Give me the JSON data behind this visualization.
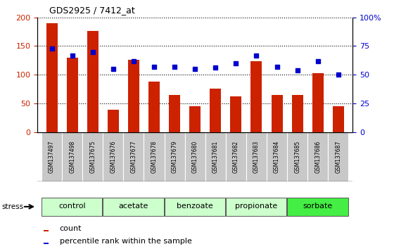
{
  "title": "GDS2925 / 7412_at",
  "categories": [
    "GSM137497",
    "GSM137498",
    "GSM137675",
    "GSM137676",
    "GSM137677",
    "GSM137678",
    "GSM137679",
    "GSM137680",
    "GSM137681",
    "GSM137682",
    "GSM137683",
    "GSM137684",
    "GSM137685",
    "GSM137686",
    "GSM137687"
  ],
  "counts": [
    190,
    130,
    176,
    39,
    126,
    88,
    65,
    45,
    76,
    62,
    124,
    65,
    65,
    103,
    45
  ],
  "percentiles": [
    73,
    67,
    70,
    55,
    62,
    57,
    57,
    55,
    56,
    60,
    67,
    57,
    54,
    62,
    50
  ],
  "bar_color": "#cc2200",
  "dot_color": "#0000cc",
  "ylim_left": [
    0,
    200
  ],
  "ylim_right": [
    0,
    100
  ],
  "yticks_left": [
    0,
    50,
    100,
    150,
    200
  ],
  "yticks_right": [
    0,
    25,
    50,
    75,
    100
  ],
  "yticklabels_right": [
    "0",
    "25",
    "50",
    "75",
    "100%"
  ],
  "groups": [
    {
      "label": "control",
      "start": 0,
      "end": 3,
      "color": "#ccffcc"
    },
    {
      "label": "acetate",
      "start": 3,
      "end": 6,
      "color": "#ccffcc"
    },
    {
      "label": "benzoate",
      "start": 6,
      "end": 9,
      "color": "#ccffcc"
    },
    {
      "label": "propionate",
      "start": 9,
      "end": 12,
      "color": "#ccffcc"
    },
    {
      "label": "sorbate",
      "start": 12,
      "end": 15,
      "color": "#44ee44"
    }
  ],
  "stress_label": "stress",
  "legend_count_label": "count",
  "legend_pct_label": "percentile rank within the sample",
  "background_color": "#ffffff",
  "plot_bg_color": "#ffffff",
  "tick_label_bg": "#c8c8c8",
  "group_border_color": "#555555"
}
